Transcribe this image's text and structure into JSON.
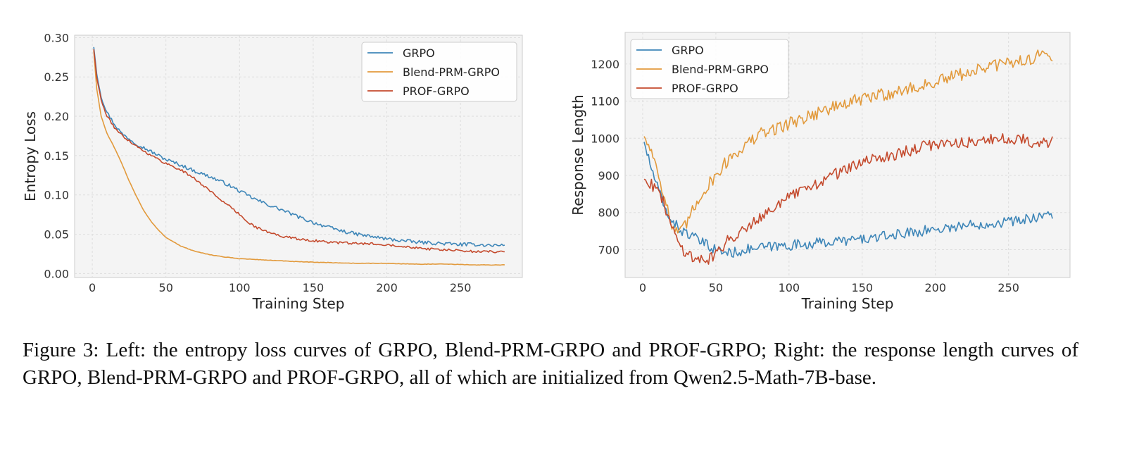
{
  "caption": "Figure 3: Left: the entropy loss curves of GRPO, Blend-PRM-GRPO and PROF-GRPO; Right: the response length curves of GRPO, Blend-PRM-GRPO and PROF-GRPO, all of which are initialized from Qwen2.5-Math-7B-base.",
  "chart_data": [
    {
      "type": "line",
      "xlabel": "Training Step",
      "ylabel": "Entropy Loss",
      "xlim": [
        -12,
        292
      ],
      "ylim": [
        -0.005,
        0.303
      ],
      "xticks": [
        0,
        50,
        100,
        150,
        200,
        250
      ],
      "yticks": [
        0.0,
        0.05,
        0.1,
        0.15,
        0.2,
        0.25,
        0.3
      ],
      "yticklabels": [
        "0.00",
        "0.05",
        "0.10",
        "0.15",
        "0.20",
        "0.25",
        "0.30"
      ],
      "grid": true,
      "legend": "top-right",
      "series": [
        {
          "name": "GRPO",
          "color": "#3e86b8",
          "noise": 0.0022,
          "x": [
            1,
            3,
            6,
            10,
            15,
            20,
            30,
            40,
            50,
            60,
            70,
            80,
            90,
            100,
            110,
            120,
            130,
            140,
            150,
            160,
            170,
            180,
            190,
            200,
            210,
            220,
            230,
            240,
            250,
            260,
            270,
            280
          ],
          "y": [
            0.288,
            0.255,
            0.225,
            0.205,
            0.19,
            0.178,
            0.165,
            0.155,
            0.145,
            0.138,
            0.13,
            0.123,
            0.115,
            0.105,
            0.095,
            0.087,
            0.08,
            0.072,
            0.065,
            0.059,
            0.054,
            0.05,
            0.047,
            0.044,
            0.042,
            0.04,
            0.039,
            0.038,
            0.037,
            0.037,
            0.036,
            0.036
          ]
        },
        {
          "name": "Blend-PRM-GRPO",
          "color": "#e29a3c",
          "noise": 0.0003,
          "x": [
            1,
            3,
            6,
            10,
            15,
            20,
            25,
            30,
            35,
            40,
            45,
            50,
            60,
            70,
            80,
            90,
            100,
            110,
            120,
            140,
            160,
            180,
            200,
            220,
            240,
            260,
            280
          ],
          "y": [
            0.283,
            0.235,
            0.2,
            0.178,
            0.16,
            0.14,
            0.118,
            0.098,
            0.08,
            0.066,
            0.055,
            0.046,
            0.035,
            0.028,
            0.024,
            0.021,
            0.019,
            0.018,
            0.017,
            0.015,
            0.014,
            0.013,
            0.013,
            0.012,
            0.012,
            0.011,
            0.011
          ]
        },
        {
          "name": "PROF-GRPO",
          "color": "#c44a2d",
          "noise": 0.0015,
          "x": [
            1,
            3,
            6,
            10,
            15,
            20,
            30,
            40,
            50,
            60,
            70,
            80,
            90,
            100,
            105,
            110,
            120,
            130,
            140,
            150,
            160,
            170,
            180,
            190,
            200,
            210,
            220,
            230,
            240,
            250,
            260,
            270,
            280
          ],
          "y": [
            0.285,
            0.25,
            0.22,
            0.2,
            0.186,
            0.176,
            0.162,
            0.15,
            0.14,
            0.132,
            0.12,
            0.105,
            0.09,
            0.075,
            0.067,
            0.06,
            0.052,
            0.047,
            0.044,
            0.042,
            0.04,
            0.039,
            0.038,
            0.038,
            0.037,
            0.035,
            0.033,
            0.031,
            0.03,
            0.029,
            0.028,
            0.028,
            0.028
          ]
        }
      ]
    },
    {
      "type": "line",
      "xlabel": "Training Step",
      "ylabel": "Response Length",
      "xlim": [
        -12,
        292
      ],
      "ylim": [
        625,
        1285
      ],
      "xticks": [
        0,
        50,
        100,
        150,
        200,
        250
      ],
      "yticks": [
        700,
        800,
        900,
        1000,
        1100,
        1200
      ],
      "yticklabels": [
        "700",
        "800",
        "900",
        "1000",
        "1100",
        "1200"
      ],
      "grid": true,
      "legend": "top-left",
      "series": [
        {
          "name": "GRPO",
          "color": "#3e86b8",
          "noise": 14,
          "x": [
            1,
            5,
            10,
            15,
            20,
            25,
            30,
            40,
            50,
            60,
            70,
            80,
            100,
            120,
            140,
            160,
            180,
            200,
            220,
            240,
            260,
            270,
            280
          ],
          "y": [
            990,
            930,
            870,
            810,
            780,
            755,
            745,
            720,
            700,
            690,
            700,
            705,
            712,
            718,
            725,
            732,
            745,
            755,
            765,
            772,
            780,
            790,
            795
          ]
        },
        {
          "name": "Blend-PRM-GRPO",
          "color": "#e29a3c",
          "noise": 18,
          "x": [
            1,
            5,
            10,
            15,
            20,
            25,
            30,
            35,
            40,
            50,
            60,
            70,
            80,
            100,
            120,
            140,
            160,
            180,
            200,
            220,
            240,
            260,
            270,
            280
          ],
          "y": [
            1005,
            975,
            920,
            840,
            760,
            740,
            770,
            810,
            850,
            900,
            950,
            980,
            1010,
            1040,
            1070,
            1095,
            1115,
            1130,
            1150,
            1175,
            1195,
            1210,
            1220,
            1225
          ]
        },
        {
          "name": "PROF-GRPO",
          "color": "#c44a2d",
          "noise": 16,
          "x": [
            1,
            5,
            10,
            15,
            20,
            25,
            30,
            35,
            40,
            45,
            50,
            55,
            60,
            70,
            80,
            100,
            120,
            140,
            160,
            180,
            200,
            220,
            240,
            260,
            270,
            280
          ],
          "y": [
            890,
            880,
            860,
            820,
            760,
            715,
            690,
            680,
            672,
            675,
            690,
            710,
            730,
            760,
            790,
            840,
            880,
            920,
            945,
            965,
            985,
            990,
            995,
            1000,
            985,
            990
          ]
        }
      ]
    }
  ]
}
